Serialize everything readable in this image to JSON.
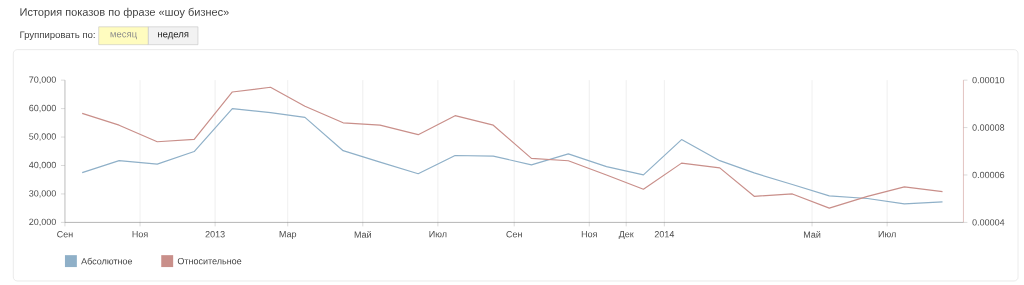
{
  "chart_data": {
    "type": "line",
    "title": "История показов по фразе «шоу бизнес»",
    "subtitle": "Группировать по:",
    "annotations": [
      "месяц",
      "неделя"
    ],
    "x": [
      "2012-09-15",
      "2012-10-15",
      "2012-11-15",
      "2012-12-15",
      "2013-01-15",
      "2013-02-15",
      "2013-03-15",
      "2013-04-15",
      "2013-05-15",
      "2013-06-15",
      "2013-07-15",
      "2013-08-15",
      "2013-09-15",
      "2013-10-15",
      "2013-11-15",
      "2013-12-15",
      "2014-01-15",
      "2014-02-15",
      "2014-03-15",
      "2014-04-15",
      "2014-05-15",
      "2014-06-15",
      "2014-07-15",
      "2014-08-15"
    ],
    "xlim": [
      "2012-09-01",
      "2014-09-01"
    ],
    "xticks": [
      {
        "value": "2012-09-01",
        "label": "Сен"
      },
      {
        "value": "2012-11-01",
        "label": "Ноя"
      },
      {
        "value": "2013-01-01",
        "label": "2013"
      },
      {
        "value": "2013-03-01",
        "label": "Мар"
      },
      {
        "value": "2013-05-01",
        "label": "Май"
      },
      {
        "value": "2013-07-01",
        "label": "Июл"
      },
      {
        "value": "2013-09-01",
        "label": "Сен"
      },
      {
        "value": "2013-11-01",
        "label": "Ноя"
      },
      {
        "value": "2013-12-01",
        "label": "Дек"
      },
      {
        "value": "2014-01-01",
        "label": "2014"
      },
      {
        "value": "2014-05-01",
        "label": "Май"
      },
      {
        "value": "2014-07-01",
        "label": "Июл"
      }
    ],
    "ylim": [
      20000,
      70000
    ],
    "yticks": [
      {
        "value": 20000,
        "label": "20,000"
      },
      {
        "value": 30000,
        "label": "30,000"
      },
      {
        "value": 40000,
        "label": "40,000"
      },
      {
        "value": 50000,
        "label": "50,000"
      },
      {
        "value": 60000,
        "label": "60,000"
      },
      {
        "value": 70000,
        "label": "70,000"
      }
    ],
    "y2lim": [
      4e-05,
      0.0001
    ],
    "y2ticks": [
      {
        "value": 4e-05,
        "label": "0.00004"
      },
      {
        "value": 6e-05,
        "label": "0.00006"
      },
      {
        "value": 8e-05,
        "label": "0.00008"
      },
      {
        "value": 0.0001,
        "label": "0.00010"
      }
    ],
    "grid": "x",
    "legend": "bottom",
    "marker": "none",
    "series": [
      {
        "name": "Абсолютное",
        "color": "#8fb0c8",
        "values": [
          37500,
          41700,
          40500,
          44900,
          60000,
          58600,
          56900,
          45200,
          41200,
          37100,
          43500,
          43300,
          40200,
          44100,
          39600,
          36700,
          49100,
          41700,
          37400,
          33300,
          29300,
          28400,
          26500,
          27200
        ]
      },
      {
        "name": "Относительное",
        "color": "#c98f8a",
        "axis": "y2",
        "values": [
          8.6e-05,
          8.1e-05,
          7.4e-05,
          7.5e-05,
          9.5e-05,
          9.7e-05,
          8.9e-05,
          8.2e-05,
          8.1e-05,
          7.7e-05,
          8.5e-05,
          8.1e-05,
          6.7e-05,
          6.6e-05,
          6e-05,
          5.4e-05,
          6.5e-05,
          6.3e-05,
          5.1e-05,
          5.2e-05,
          4.6e-05,
          5.1e-05,
          5.5e-05,
          5.3e-05
        ]
      }
    ]
  }
}
